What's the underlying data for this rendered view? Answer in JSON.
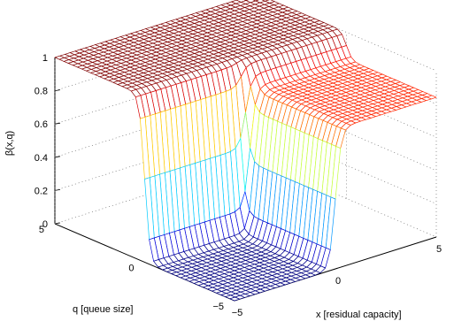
{
  "chart_data": {
    "type": "surface",
    "title": "",
    "xlabel": "x [residual capacity]",
    "ylabel": "q [queue size]",
    "zlabel": "β(x,q)",
    "xlim": [
      -5,
      5
    ],
    "ylim": [
      -5,
      5
    ],
    "zlim": [
      0,
      1
    ],
    "x_ticks": [
      "−5",
      "0",
      "5"
    ],
    "y_ticks": [
      "−5",
      "0",
      "5"
    ],
    "z_ticks": [
      "0",
      "0.2",
      "0.4",
      "0.6",
      "0.8",
      "1"
    ],
    "grid": true,
    "colormap": "jet",
    "surface_levels": [
      {
        "region": "x < 0 and q < 0",
        "value": 0
      },
      {
        "region": "x < 0 and q > 0",
        "value": 1
      },
      {
        "region": "x > 0 and q > 0",
        "value": 1
      },
      {
        "region": "x > 0 and q < 0",
        "value": 0.84
      }
    ]
  }
}
